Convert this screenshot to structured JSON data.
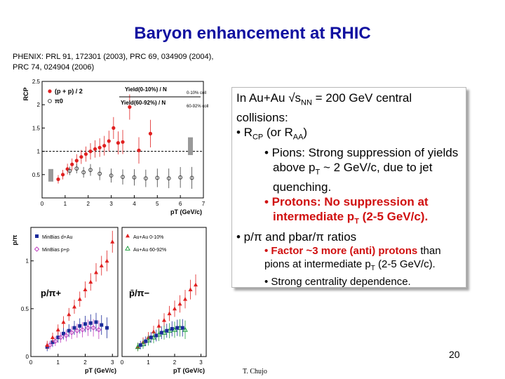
{
  "slide": {
    "title": "Baryon enhancement at RHIC",
    "refs_line1": "PHENIX: PRL 91, 172301 (2003), PRC 69, 034909 (2004),",
    "refs_line2": "PRC 74, 024904 (2006)",
    "page_number": "20",
    "author": "T. Chujo"
  },
  "textbox": {
    "l1a": "In Au+Au √s",
    "l1sub": "NN",
    "l1b": " = 200 GeV central",
    "l2": "collisions:",
    "l3a": "• R",
    "l3sub1": "CP",
    "l3b": " (or R",
    "l3sub2": "AA",
    "l3c": ")",
    "l4a": "• Pions: Strong suppression of yields above p",
    "l4sub": "T",
    "l4b": " ~ 2 GeV/c, due to jet quenching.",
    "l5a": "• Protons: No suppression at intermediate p",
    "l5sub": "T",
    "l5b": " (2-5 GeV/c).",
    "l6": "• p/π and pbar/π ratios",
    "l7red": "• Factor ~3 more (anti) protons",
    "l7b": " than pions at intermediate p",
    "l7sub": "T",
    "l7c": " (2-5 GeV/c).",
    "l8": "• Strong centrality dependence."
  },
  "chart_data": [
    {
      "type": "scatter",
      "ylabel": "RCP",
      "xlabel": "pT (GeV/c)",
      "xlim": [
        0,
        7
      ],
      "ylim": [
        0,
        2.5
      ],
      "xticks": [
        "0",
        "1",
        "2",
        "3",
        "4",
        "5",
        "6",
        "7"
      ],
      "yticks": [
        "0.5",
        "1",
        "1.5",
        "2",
        "2.5"
      ],
      "legend": {
        "proton_label": "(p + p) / 2",
        "pion_label": "π0"
      },
      "formula_num_top": "Yield(0-10%) / N",
      "formula_num_sub": "0-10% coll",
      "formula_den_top": "Yield(60-92%) / N",
      "formula_den_sub": "60-92% coll",
      "series": [
        {
          "name": "(p + p) / 2",
          "color": "#e02020",
          "x": [
            0.7,
            0.9,
            1.1,
            1.3,
            1.5,
            1.7,
            1.9,
            2.1,
            2.3,
            2.5,
            2.7,
            2.9,
            3.1,
            3.3,
            3.5,
            3.8,
            4.2,
            4.7
          ],
          "y": [
            0.4,
            0.5,
            0.62,
            0.72,
            0.8,
            0.88,
            0.94,
            1.0,
            1.05,
            1.08,
            1.12,
            1.22,
            1.5,
            1.18,
            1.2,
            1.95,
            1.02,
            1.38
          ]
        },
        {
          "name": "π0",
          "color": "#404040",
          "x": [
            1.2,
            1.5,
            1.8,
            2.1,
            2.5,
            3.0,
            3.5,
            4.0,
            4.5,
            5.0,
            5.5,
            6.0,
            6.5
          ],
          "y": [
            0.58,
            0.63,
            0.55,
            0.6,
            0.52,
            0.48,
            0.45,
            0.44,
            0.42,
            0.43,
            0.42,
            0.44,
            0.43
          ]
        }
      ]
    },
    {
      "type": "scatter",
      "ylabel": "p/π",
      "xlabel": "pT (GeV/c)",
      "xlim": [
        0,
        3.2
      ],
      "ylim": [
        0,
        1.35
      ],
      "xticks": [
        "0",
        "1",
        "2",
        "3"
      ],
      "yticks": [
        "0",
        "0.5",
        "1"
      ],
      "panel_label": "p/π+",
      "legend": {
        "a": "MinBias d+Au",
        "b": "MinBias p+p"
      },
      "series": [
        {
          "name": "MinBias d+Au",
          "color": "#1a2a9a",
          "x": [
            0.6,
            0.8,
            1.0,
            1.2,
            1.4,
            1.6,
            1.8,
            2.0,
            2.2,
            2.4,
            2.6,
            2.8
          ],
          "y": [
            0.1,
            0.15,
            0.2,
            0.24,
            0.27,
            0.3,
            0.32,
            0.34,
            0.35,
            0.36,
            0.33,
            0.3
          ]
        },
        {
          "name": "MinBias p+p",
          "color": "#c040c0",
          "x": [
            0.7,
            0.9,
            1.1,
            1.3,
            1.5,
            1.7,
            1.9,
            2.1,
            2.3,
            2.5
          ],
          "y": [
            0.12,
            0.16,
            0.2,
            0.22,
            0.25,
            0.27,
            0.28,
            0.3,
            0.3,
            0.28
          ]
        },
        {
          "name": "Au+Au 0-10%",
          "color": "#e02020",
          "x": [
            0.6,
            0.8,
            1.0,
            1.2,
            1.4,
            1.6,
            1.8,
            2.0,
            2.2,
            2.4,
            2.6,
            2.8,
            3.0
          ],
          "y": [
            0.12,
            0.2,
            0.28,
            0.36,
            0.44,
            0.52,
            0.6,
            0.7,
            0.78,
            0.88,
            0.95,
            1.0,
            1.2
          ]
        }
      ]
    },
    {
      "type": "scatter",
      "ylabel": "",
      "xlabel": "pT (GeV/c)",
      "xlim": [
        0,
        3.2
      ],
      "ylim": [
        0,
        1.35
      ],
      "xticks": [
        "0",
        "1",
        "2",
        "3"
      ],
      "yticks": [],
      "panel_label": "p̄/π−",
      "legend": {
        "a": "Au+Au 0-10%",
        "b": "Au+Au 60-92%"
      },
      "series": [
        {
          "name": "Au+Au 0-10%",
          "color": "#e02020",
          "x": [
            0.6,
            0.8,
            1.0,
            1.2,
            1.4,
            1.6,
            1.8,
            2.0,
            2.2,
            2.4,
            2.6,
            2.8
          ],
          "y": [
            0.1,
            0.15,
            0.2,
            0.26,
            0.32,
            0.38,
            0.45,
            0.5,
            0.55,
            0.6,
            0.7,
            0.75
          ]
        },
        {
          "name": "Au+Au 60-92%",
          "color": "#20a040",
          "x": [
            0.6,
            0.8,
            1.0,
            1.2,
            1.4,
            1.6,
            1.8,
            2.0,
            2.2,
            2.4
          ],
          "y": [
            0.1,
            0.13,
            0.17,
            0.2,
            0.23,
            0.25,
            0.27,
            0.28,
            0.3,
            0.28
          ]
        },
        {
          "name": "MinBias d+Au",
          "color": "#1a2a9a",
          "x": [
            0.7,
            0.9,
            1.1,
            1.3,
            1.5,
            1.7,
            1.9,
            2.1,
            2.3
          ],
          "y": [
            0.12,
            0.16,
            0.2,
            0.22,
            0.25,
            0.27,
            0.29,
            0.3,
            0.3
          ]
        }
      ]
    }
  ]
}
